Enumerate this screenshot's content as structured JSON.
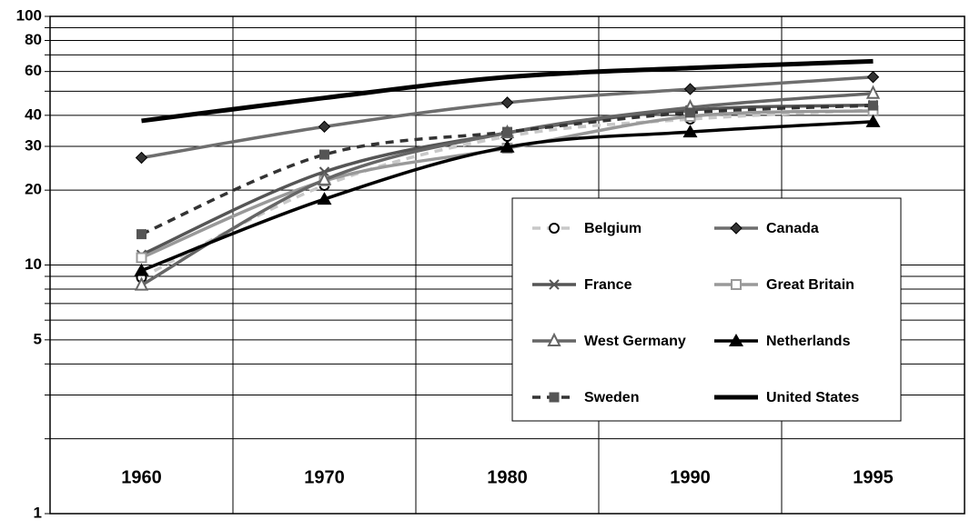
{
  "chart_data": {
    "type": "line",
    "log_scale": true,
    "grid": true,
    "categories": [
      "1960",
      "1970",
      "1980",
      "1990",
      "1995"
    ],
    "ylim": [
      1,
      100
    ],
    "yticks": [
      1,
      5,
      10,
      20,
      30,
      40,
      60,
      80,
      100
    ],
    "minor_yticks": [
      2,
      3,
      4,
      6,
      7,
      8,
      9,
      50,
      70,
      90
    ],
    "series": [
      {
        "name": "Belgium",
        "color": "#c8c8c8",
        "marker": "circle",
        "dashed": true,
        "values": [
          8.9,
          20.9,
          32.9,
          38.6,
          42
        ]
      },
      {
        "name": "Canada",
        "color": "#6e6e6e",
        "marker": "diamond",
        "dashed": false,
        "values": [
          27,
          36,
          45,
          51,
          57
        ]
      },
      {
        "name": "France",
        "color": "#555555",
        "marker": "x",
        "dashed": false,
        "values": [
          11,
          23.7,
          34,
          42,
          44
        ]
      },
      {
        "name": "Great Britain",
        "color": "#999999",
        "marker": "square",
        "dashed": false,
        "values": [
          10.7,
          21.8,
          29.5,
          39.6,
          41.7
        ]
      },
      {
        "name": "West Germany",
        "color": "#666666",
        "marker": "triangle",
        "dashed": false,
        "values": [
          8.3,
          22,
          34,
          43,
          49
        ]
      },
      {
        "name": "Netherlands",
        "color": "#000000",
        "marker": "filled-triangle",
        "dashed": false,
        "values": [
          9.5,
          18.4,
          29.8,
          34.3,
          37.7
        ]
      },
      {
        "name": "Sweden",
        "color": "#333333",
        "marker": "filled-square",
        "dashed": true,
        "values": [
          13.3,
          27.8,
          34.3,
          41,
          43.8
        ]
      },
      {
        "name": "United States",
        "color": "#000000",
        "marker": "none",
        "dashed": false,
        "values": [
          38,
          47,
          57,
          62,
          66
        ]
      }
    ]
  }
}
